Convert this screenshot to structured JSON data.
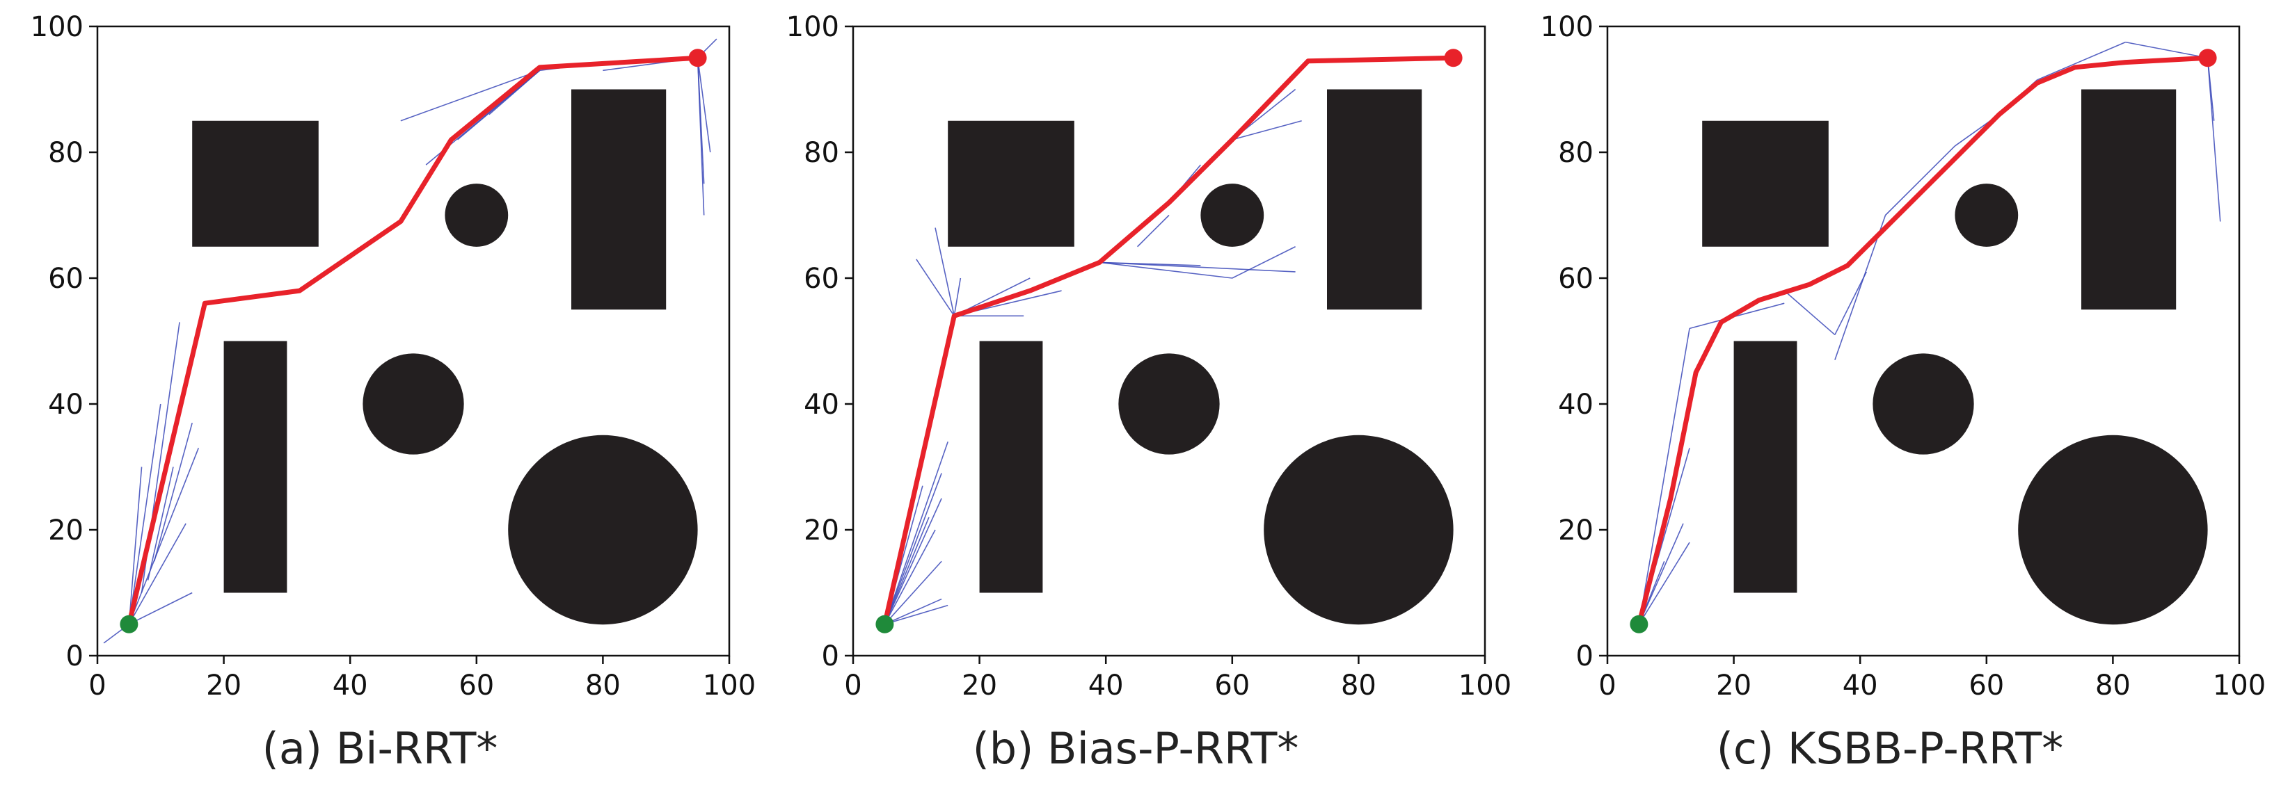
{
  "figure": {
    "obstacles": {
      "rects": [
        {
          "x": [
            15,
            35
          ],
          "y": [
            65,
            85
          ]
        },
        {
          "x": [
            75,
            90
          ],
          "y": [
            55,
            90
          ]
        },
        {
          "x": [
            20,
            30
          ],
          "y": [
            10,
            50
          ]
        }
      ],
      "circles": [
        {
          "cx": 60,
          "cy": 70,
          "r": 5
        },
        {
          "cx": 50,
          "cy": 40,
          "r": 8
        },
        {
          "cx": 80,
          "cy": 20,
          "r": 15
        }
      ]
    },
    "start": {
      "x": 5,
      "y": 5
    },
    "goal": {
      "x": 95,
      "y": 95
    },
    "colors": {
      "obstacle": "#231f20",
      "path": "#e8222a",
      "tree": "#3a48b8",
      "start": "#1f8a3a",
      "goal": "#e8222a"
    }
  },
  "chart_data": [
    {
      "type": "line",
      "title": "(a) Bi-RRT*",
      "xlabel": "",
      "ylabel": "",
      "xlim": [
        0,
        100
      ],
      "ylim": [
        0,
        100
      ],
      "xticks": [
        0,
        20,
        40,
        60,
        80,
        100
      ],
      "yticks": [
        0,
        20,
        40,
        60,
        80,
        100
      ],
      "grid": false,
      "series": [
        {
          "role": "path",
          "points": [
            [
              5,
              5
            ],
            [
              17,
              56
            ],
            [
              32,
              58
            ],
            [
              48,
              69
            ],
            [
              56,
              82
            ],
            [
              70,
              93.5
            ],
            [
              95,
              95
            ]
          ]
        },
        {
          "role": "tree",
          "segments": [
            [
              [
                5,
                5
              ],
              [
                1,
                2
              ]
            ],
            [
              [
                5,
                5
              ],
              [
                15,
                10
              ]
            ],
            [
              [
                5,
                5
              ],
              [
                7,
                30
              ]
            ],
            [
              [
                5,
                5
              ],
              [
                10,
                40
              ]
            ],
            [
              [
                5,
                5
              ],
              [
                14,
                21
              ]
            ],
            [
              [
                5,
                5
              ],
              [
                16,
                33
              ]
            ],
            [
              [
                7,
                10
              ],
              [
                13,
                53
              ]
            ],
            [
              [
                9,
                15
              ],
              [
                15,
                37
              ]
            ],
            [
              [
                8,
                12
              ],
              [
                12,
                30
              ]
            ],
            [
              [
                70,
                93
              ],
              [
                48,
                85
              ]
            ],
            [
              [
                70,
                93
              ],
              [
                52,
                78
              ]
            ],
            [
              [
                70,
                93
              ],
              [
                57,
                82
              ]
            ],
            [
              [
                70,
                93
              ],
              [
                62,
                86
              ]
            ],
            [
              [
                95,
                95
              ],
              [
                98,
                98
              ]
            ],
            [
              [
                95,
                95
              ],
              [
                97,
                80
              ]
            ],
            [
              [
                95,
                95
              ],
              [
                96,
                75
              ]
            ],
            [
              [
                95,
                95
              ],
              [
                96,
                70
              ]
            ],
            [
              [
                95,
                95
              ],
              [
                80,
                93
              ]
            ],
            [
              [
                70,
                93
              ],
              [
                78,
                94
              ]
            ]
          ]
        }
      ]
    },
    {
      "type": "line",
      "title": "(b) Bias-P-RRT*",
      "xlabel": "",
      "ylabel": "",
      "xlim": [
        0,
        100
      ],
      "ylim": [
        0,
        100
      ],
      "xticks": [
        0,
        20,
        40,
        60,
        80,
        100
      ],
      "yticks": [
        0,
        20,
        40,
        60,
        80,
        100
      ],
      "grid": false,
      "series": [
        {
          "role": "path",
          "points": [
            [
              5,
              5
            ],
            [
              16,
              54
            ],
            [
              28,
              58
            ],
            [
              39,
              62.5
            ],
            [
              50,
              72
            ],
            [
              60,
              82
            ],
            [
              72,
              94.5
            ],
            [
              95,
              95
            ]
          ]
        },
        {
          "role": "tree",
          "segments": [
            [
              [
                5,
                5
              ],
              [
                14,
                9
              ]
            ],
            [
              [
                5,
                5
              ],
              [
                14,
                15
              ]
            ],
            [
              [
                5,
                5
              ],
              [
                13,
                20
              ]
            ],
            [
              [
                5,
                5
              ],
              [
                14,
                25
              ]
            ],
            [
              [
                5,
                5
              ],
              [
                14,
                29
              ]
            ],
            [
              [
                5,
                5
              ],
              [
                15,
                34
              ]
            ],
            [
              [
                5,
                5
              ],
              [
                12,
                22
              ]
            ],
            [
              [
                5,
                5
              ],
              [
                11,
                27
              ]
            ],
            [
              [
                5,
                5
              ],
              [
                15,
                8
              ]
            ],
            [
              [
                16,
                54
              ],
              [
                10,
                63
              ]
            ],
            [
              [
                16,
                54
              ],
              [
                13,
                68
              ]
            ],
            [
              [
                16,
                54
              ],
              [
                17,
                60
              ]
            ],
            [
              [
                16,
                54
              ],
              [
                27,
                54
              ]
            ],
            [
              [
                16,
                54
              ],
              [
                28,
                60
              ]
            ],
            [
              [
                16,
                54
              ],
              [
                33,
                58
              ]
            ],
            [
              [
                16,
                54
              ],
              [
                14,
                46
              ]
            ],
            [
              [
                39,
                62.5
              ],
              [
                55,
                62
              ]
            ],
            [
              [
                39,
                62.5
              ],
              [
                60,
                60
              ]
            ],
            [
              [
                39,
                62.5
              ],
              [
                70,
                61
              ]
            ],
            [
              [
                50,
                72
              ],
              [
                55,
                78
              ]
            ],
            [
              [
                60,
                60
              ],
              [
                70,
                65
              ]
            ],
            [
              [
                60,
                82
              ],
              [
                70,
                90
              ]
            ],
            [
              [
                60,
                82
              ],
              [
                71,
                85
              ]
            ],
            [
              [
                45,
                65
              ],
              [
                50,
                70
              ]
            ]
          ]
        }
      ]
    },
    {
      "type": "line",
      "title": "(c) KSBB-P-RRT*",
      "xlabel": "",
      "ylabel": "",
      "xlim": [
        0,
        100
      ],
      "ylim": [
        0,
        100
      ],
      "xticks": [
        0,
        20,
        40,
        60,
        80,
        100
      ],
      "yticks": [
        0,
        20,
        40,
        60,
        80,
        100
      ],
      "grid": false,
      "series": [
        {
          "role": "path",
          "points": [
            [
              5,
              5
            ],
            [
              10,
              25
            ],
            [
              14,
              45
            ],
            [
              18,
              53
            ],
            [
              24,
              56.5
            ],
            [
              32,
              59
            ],
            [
              38,
              62
            ],
            [
              44,
              68
            ],
            [
              50,
              74
            ],
            [
              56,
              80
            ],
            [
              62,
              86
            ],
            [
              68,
              91
            ],
            [
              74,
              93.5
            ],
            [
              82,
              94.3
            ],
            [
              95,
              95
            ]
          ]
        },
        {
          "role": "tree",
          "segments": [
            [
              [
                5,
                5
              ],
              [
                13,
                33
              ]
            ],
            [
              [
                5,
                5
              ],
              [
                12,
                21
              ]
            ],
            [
              [
                5,
                5
              ],
              [
                13,
                18
              ]
            ],
            [
              [
                5,
                5
              ],
              [
                9,
                15
              ]
            ],
            [
              [
                5,
                5
              ],
              [
                13,
                52
              ]
            ],
            [
              [
                13,
                52
              ],
              [
                28,
                56
              ]
            ],
            [
              [
                28,
                58
              ],
              [
                36,
                51
              ]
            ],
            [
              [
                36,
                51
              ],
              [
                41,
                61
              ]
            ],
            [
              [
                36,
                47
              ],
              [
                44,
                70
              ]
            ],
            [
              [
                44,
                70
              ],
              [
                55,
                81
              ]
            ],
            [
              [
                55,
                81
              ],
              [
                62,
                86
              ]
            ],
            [
              [
                62,
                86
              ],
              [
                68,
                91.5
              ]
            ],
            [
              [
                68,
                91.5
              ],
              [
                82,
                97.5
              ]
            ],
            [
              [
                82,
                97.5
              ],
              [
                95,
                95
              ]
            ],
            [
              [
                95,
                95
              ],
              [
                96,
                85
              ]
            ],
            [
              [
                95,
                95
              ],
              [
                97,
                69
              ]
            ]
          ]
        }
      ]
    }
  ]
}
